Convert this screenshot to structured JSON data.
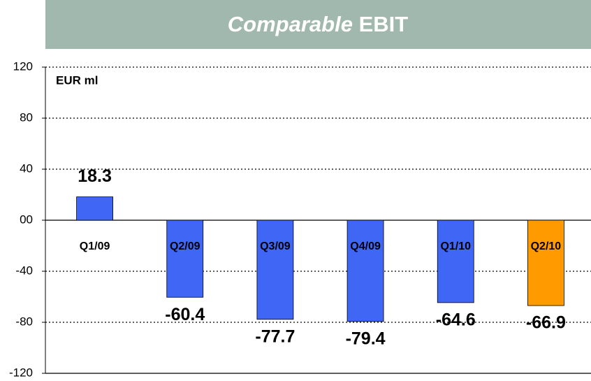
{
  "chart_data": {
    "type": "bar",
    "title": [
      "Comparable",
      "EBIT"
    ],
    "y_label": "EUR ml",
    "categories": [
      "Q1/09",
      "Q2/09",
      "Q3/09",
      "Q4/09",
      "Q1/10",
      "Q2/10"
    ],
    "values": [
      18.3,
      -60.4,
      -77.7,
      -79.4,
      -64.6,
      -66.9
    ],
    "colors": [
      "#3f66f4",
      "#3f66f4",
      "#3f66f4",
      "#3f66f4",
      "#3f66f4",
      "#ff9a00"
    ],
    "ylim": [
      -120,
      120
    ],
    "yticks": [
      -120,
      -80,
      -40,
      {
        "value": 0,
        "label": "00"
      },
      40,
      80,
      120
    ],
    "grid": true
  }
}
